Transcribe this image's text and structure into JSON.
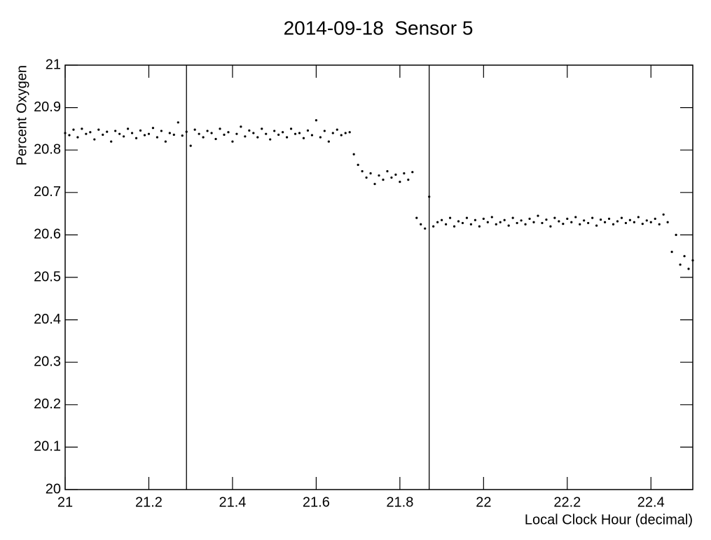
{
  "chart_data": {
    "type": "scatter",
    "title": "2014-09-18  Sensor 5",
    "x_label": "Local Clock Hour (decimal)",
    "y_label": "Percent Oxygen",
    "xlim": [
      21,
      22.5
    ],
    "ylim": [
      20,
      21
    ],
    "xticks": [
      21,
      21.2,
      21.4,
      21.6,
      21.8,
      22,
      22.2,
      22.4
    ],
    "yticks": [
      20,
      20.1,
      20.2,
      20.3,
      20.4,
      20.5,
      20.6,
      20.7,
      20.8,
      20.9,
      21
    ],
    "vlines": [
      21.29,
      21.87
    ],
    "color": "#000000",
    "x": [
      21,
      21.01,
      21.02,
      21.03,
      21.04,
      21.05,
      21.06,
      21.07,
      21.08,
      21.09,
      21.1,
      21.11,
      21.12,
      21.13,
      21.14,
      21.15,
      21.16,
      21.17,
      21.18,
      21.19,
      21.2,
      21.21,
      21.22,
      21.23,
      21.24,
      21.25,
      21.26,
      21.27,
      21.28,
      21.29,
      21.3,
      21.31,
      21.32,
      21.33,
      21.34,
      21.35,
      21.36,
      21.37,
      21.38,
      21.39,
      21.4,
      21.41,
      21.42,
      21.43,
      21.44,
      21.45,
      21.46,
      21.47,
      21.48,
      21.49,
      21.5,
      21.51,
      21.52,
      21.53,
      21.54,
      21.55,
      21.56,
      21.57,
      21.58,
      21.59,
      21.6,
      21.61,
      21.62,
      21.63,
      21.64,
      21.65,
      21.66,
      21.67,
      21.68,
      21.69,
      21.7,
      21.71,
      21.72,
      21.73,
      21.74,
      21.75,
      21.76,
      21.77,
      21.78,
      21.79,
      21.8,
      21.81,
      21.82,
      21.83,
      21.84,
      21.85,
      21.86,
      21.87,
      21.88,
      21.89,
      21.9,
      21.91,
      21.92,
      21.93,
      21.94,
      21.95,
      21.96,
      21.97,
      21.98,
      21.99,
      22,
      22.01,
      22.02,
      22.03,
      22.04,
      22.05,
      22.06,
      22.07,
      22.08,
      22.09,
      22.1,
      22.11,
      22.12,
      22.13,
      22.14,
      22.15,
      22.16,
      22.17,
      22.18,
      22.19,
      22.2,
      22.21,
      22.22,
      22.23,
      22.24,
      22.25,
      22.26,
      22.27,
      22.28,
      22.29,
      22.3,
      22.31,
      22.32,
      22.33,
      22.34,
      22.35,
      22.36,
      22.37,
      22.38,
      22.39,
      22.4,
      22.41,
      22.42,
      22.43,
      22.44,
      22.45,
      22.46,
      22.47,
      22.48,
      22.49,
      22.5
    ],
    "values": [
      20.84,
      20.835,
      20.848,
      20.83,
      20.85,
      20.838,
      20.842,
      20.825,
      20.848,
      20.836,
      20.843,
      20.82,
      20.845,
      20.838,
      20.832,
      20.85,
      20.84,
      20.828,
      20.846,
      20.835,
      20.838,
      20.852,
      20.83,
      20.845,
      20.82,
      20.84,
      20.836,
      20.865,
      20.834,
      20.843,
      20.81,
      20.848,
      20.838,
      20.83,
      20.845,
      20.84,
      20.826,
      20.85,
      20.836,
      20.842,
      20.82,
      20.838,
      20.855,
      20.832,
      20.846,
      20.84,
      20.83,
      20.85,
      20.838,
      20.825,
      20.845,
      20.836,
      20.842,
      20.83,
      20.85,
      20.838,
      20.84,
      20.828,
      20.846,
      20.835,
      20.87,
      20.83,
      20.845,
      20.82,
      20.84,
      20.848,
      20.835,
      20.84,
      20.842,
      20.79,
      20.765,
      20.75,
      20.735,
      20.745,
      20.72,
      20.74,
      20.73,
      20.75,
      20.735,
      20.742,
      20.725,
      20.745,
      20.73,
      20.748,
      20.64,
      20.625,
      20.615,
      20.69,
      20.62,
      20.63,
      20.635,
      20.625,
      20.64,
      20.62,
      20.632,
      20.628,
      20.64,
      20.625,
      20.635,
      20.62,
      20.638,
      20.63,
      20.642,
      20.625,
      20.63,
      20.635,
      20.622,
      20.64,
      20.628,
      20.634,
      20.625,
      20.638,
      20.63,
      20.645,
      20.628,
      20.636,
      20.62,
      20.64,
      20.632,
      20.626,
      20.638,
      20.63,
      20.642,
      20.625,
      20.634,
      20.628,
      20.64,
      20.622,
      20.636,
      20.63,
      20.638,
      20.625,
      20.632,
      20.64,
      20.628,
      20.635,
      20.63,
      20.642,
      20.626,
      20.634,
      20.63,
      20.638,
      20.625,
      20.648,
      20.63,
      20.56,
      20.6,
      20.53,
      20.55,
      20.52,
      20.54
    ]
  }
}
